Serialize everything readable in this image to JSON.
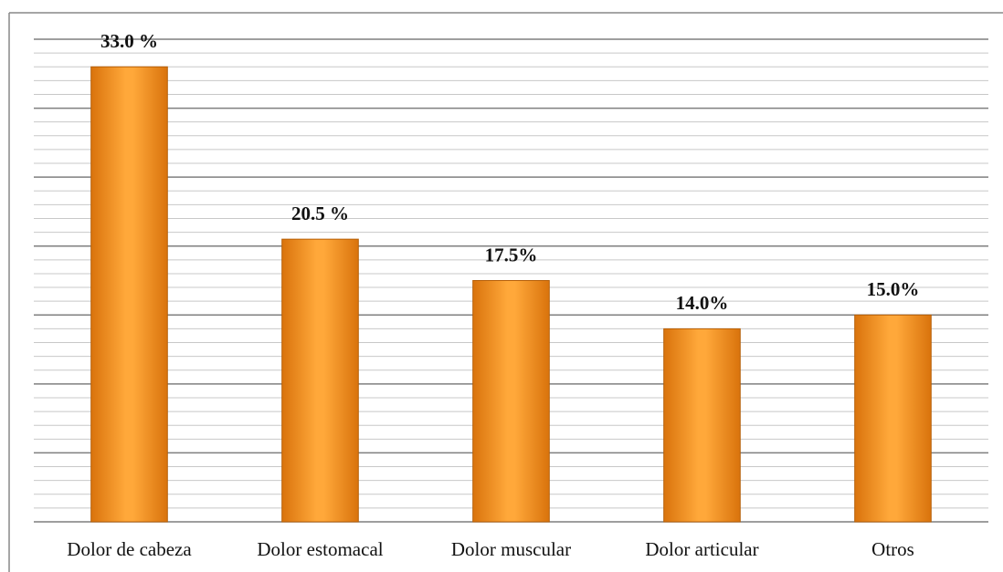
{
  "chart_data": {
    "type": "bar",
    "categories": [
      "Dolor de cabeza",
      "Dolor estomacal",
      "Dolor muscular",
      "Dolor articular",
      "Otros"
    ],
    "values": [
      33.0,
      20.5,
      17.5,
      14.0,
      15.0
    ],
    "value_labels": [
      "33.0 %",
      "20.5 %",
      "17.5%",
      "14.0%",
      "15.0%"
    ],
    "color": "#f7941d",
    "ylim": [
      0,
      35
    ],
    "yticks": [
      0,
      5,
      10,
      15,
      20,
      25,
      30,
      35
    ],
    "minor_yticks": [
      1,
      2,
      3,
      4,
      6,
      7,
      8,
      9,
      11,
      12,
      13,
      14,
      16,
      17,
      18,
      19,
      21,
      22,
      23,
      24,
      26,
      27,
      28,
      29,
      31,
      32,
      33,
      34
    ],
    "grid": true
  }
}
